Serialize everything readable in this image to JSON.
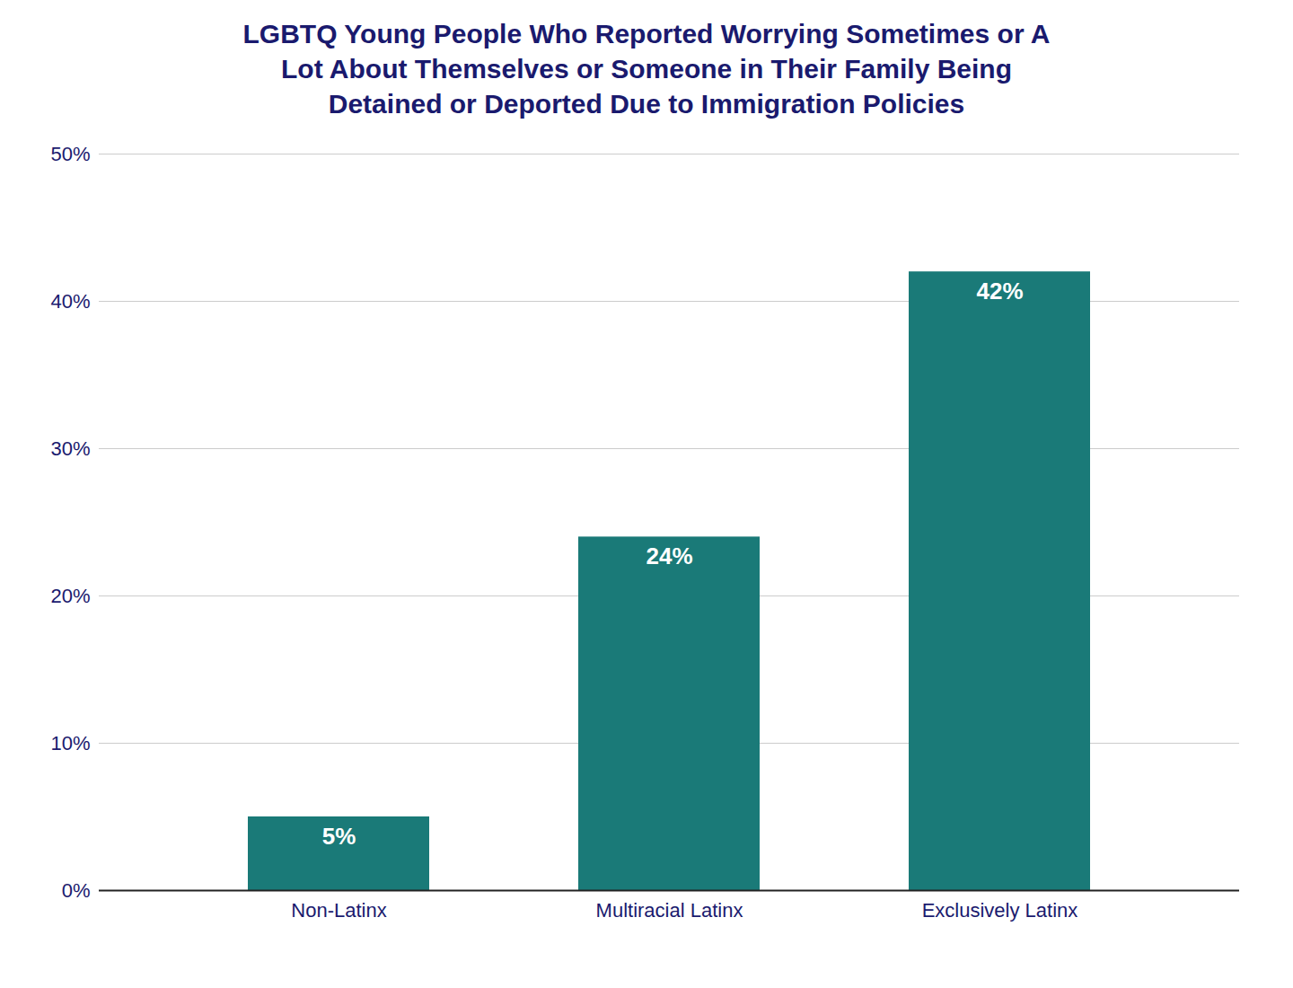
{
  "chart_data": {
    "type": "bar",
    "title": "LGBTQ Young People Who Reported Worrying Sometimes or A\nLot About Themselves or Someone in Their Family Being\nDetained or Deported Due to Immigration Policies",
    "categories": [
      "Non-Latinx",
      "Multiracial Latinx",
      "Exclusively Latinx"
    ],
    "values": [
      5,
      24,
      42
    ],
    "value_labels": [
      "5%",
      "24%",
      "42%"
    ],
    "data_labels": true,
    "color": "#1a7a78",
    "ylim": [
      0,
      50
    ],
    "yticks": [
      {
        "value": 0,
        "label": "0%"
      },
      {
        "value": 10,
        "label": "10%"
      },
      {
        "value": 20,
        "label": "20%"
      },
      {
        "value": 30,
        "label": "30%"
      },
      {
        "value": 40,
        "label": "40%"
      },
      {
        "value": 50,
        "label": "50%"
      }
    ],
    "grid": true
  }
}
